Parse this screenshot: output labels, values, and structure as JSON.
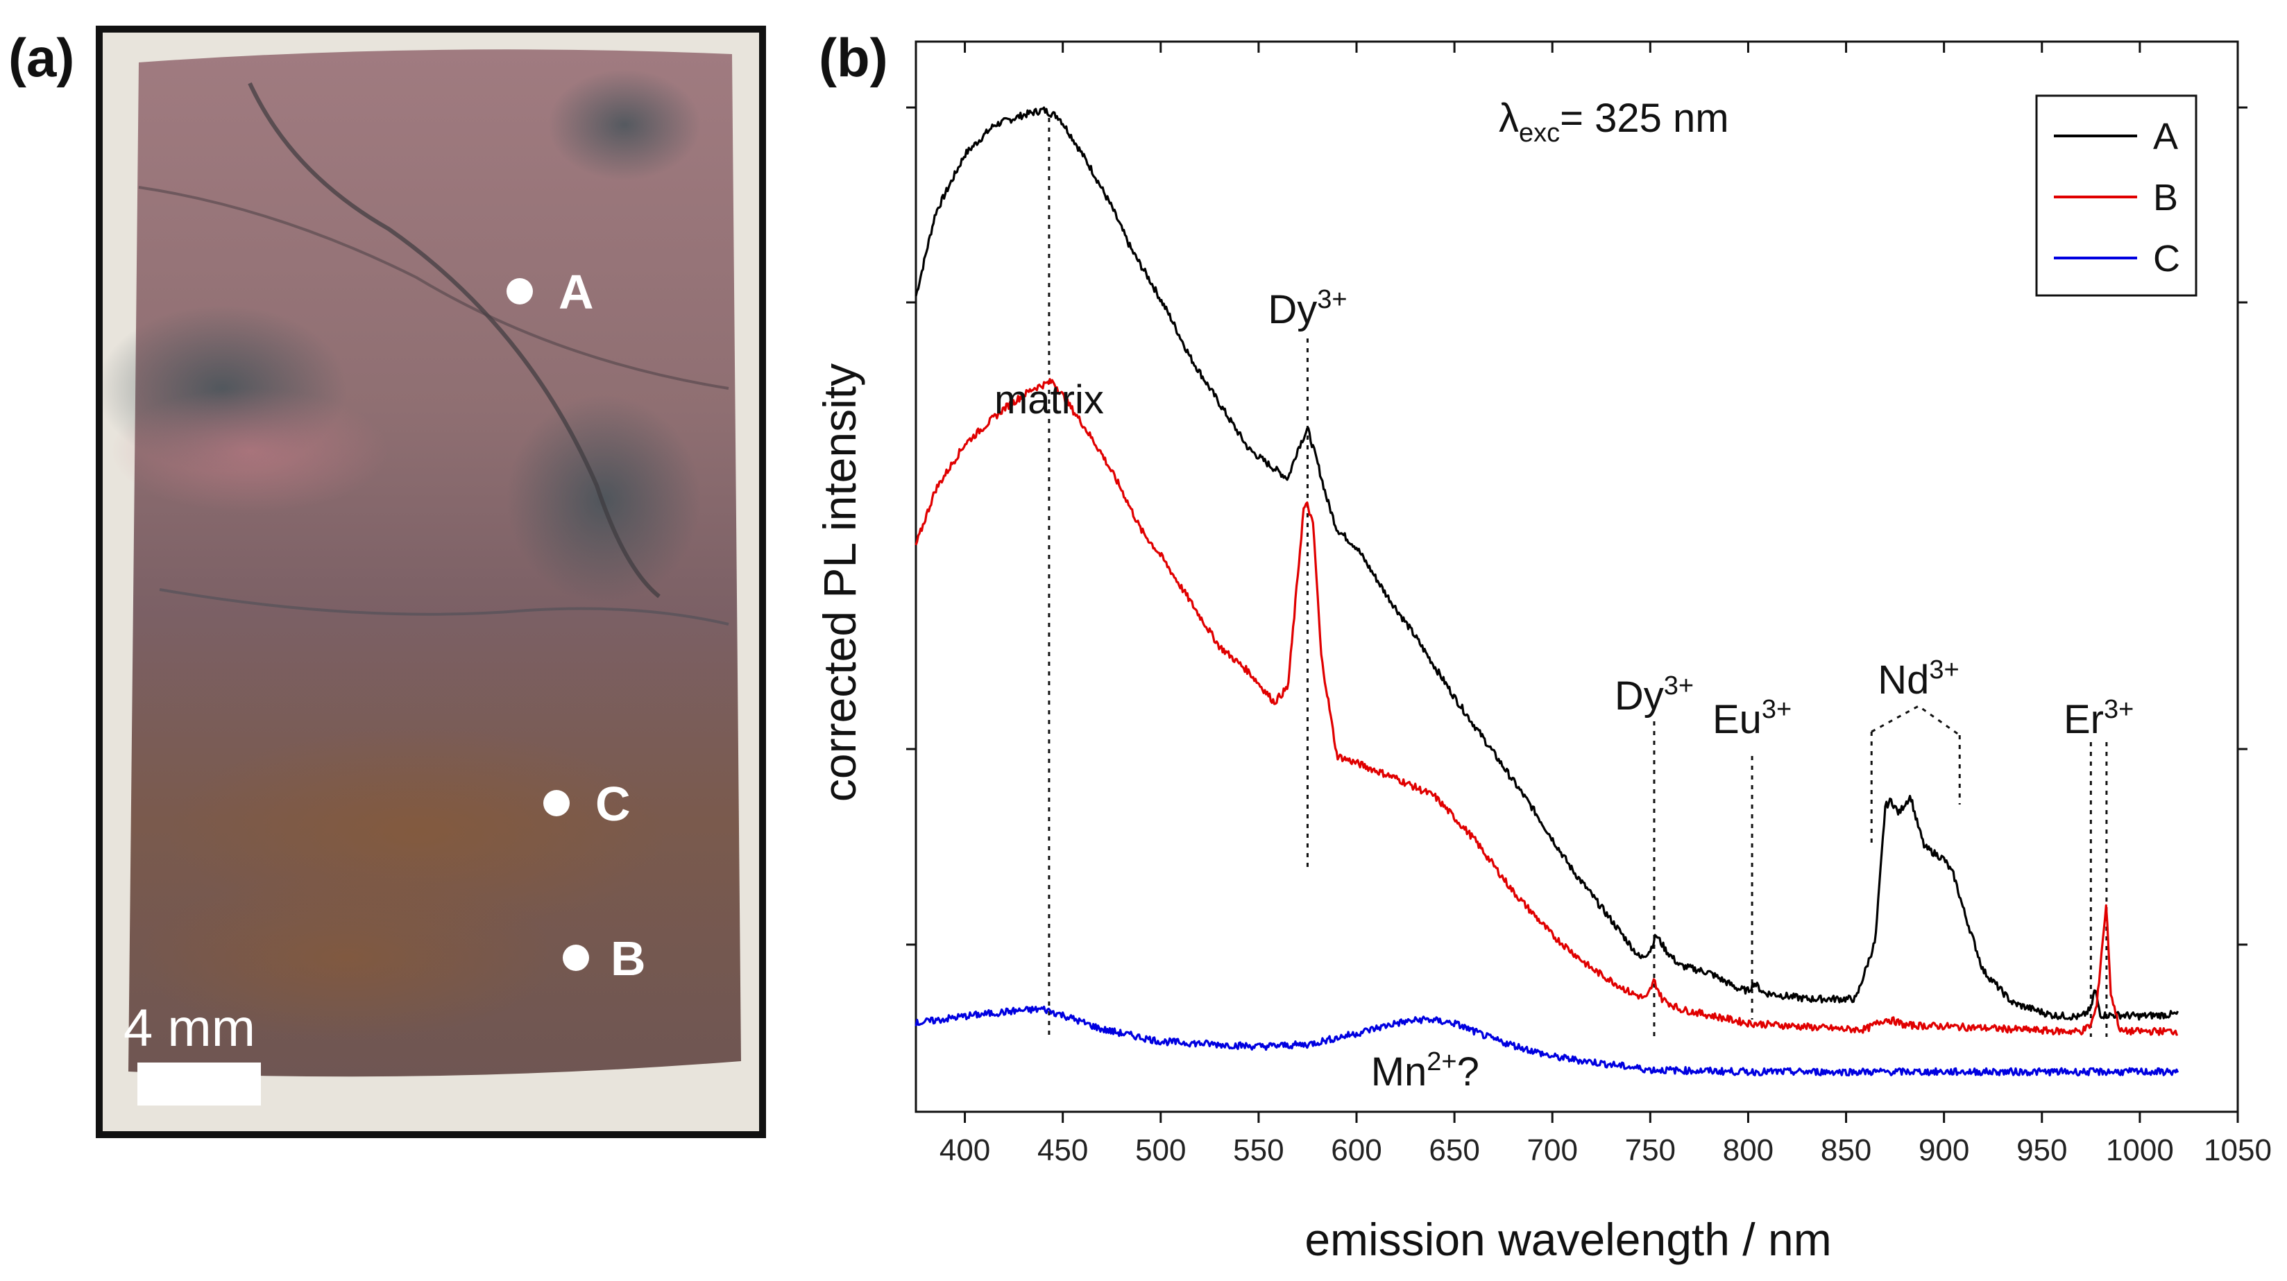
{
  "panel_a": {
    "label": "(a)",
    "points": [
      {
        "name": "A"
      },
      {
        "name": "C"
      },
      {
        "name": "B"
      }
    ],
    "scale_bar_label": "4 mm",
    "colors": {
      "frame": "#111111",
      "stone": "#7a5f63",
      "marker": "#ffffff"
    }
  },
  "panel_b": {
    "label": "(b)",
    "excitation": {
      "lambda": "λ",
      "subscript": "exc",
      "text": "= 325 nm"
    }
  },
  "chart_data": {
    "type": "line",
    "title": "",
    "xlabel": "emission wavelength / nm",
    "ylabel": "corrected PL intensity",
    "xlim": [
      375,
      1050
    ],
    "ylim": [
      0,
      1
    ],
    "xticks": [
      400,
      450,
      500,
      550,
      600,
      650,
      700,
      750,
      800,
      850,
      900,
      950,
      1000,
      1050
    ],
    "grid": false,
    "legend_position": "top-right",
    "series": [
      {
        "name": "A",
        "color": "#000000",
        "x": [
          375,
          385,
          400,
          415,
          430,
          440,
          448,
          455,
          465,
          475,
          485,
          495,
          505,
          515,
          530,
          545,
          555,
          565,
          570,
          575,
          580,
          585,
          590,
          600,
          615,
          630,
          650,
          670,
          690,
          710,
          730,
          745,
          750,
          753,
          758,
          765,
          780,
          795,
          800,
          803,
          808,
          830,
          855,
          865,
          870,
          873,
          877,
          880,
          883,
          886,
          890,
          895,
          900,
          905,
          910,
          920,
          935,
          955,
          970,
          975,
          977,
          980,
          990,
          1000,
          1020
        ],
        "y": [
          0.776,
          0.858,
          0.916,
          0.945,
          0.955,
          0.96,
          0.953,
          0.932,
          0.9,
          0.864,
          0.822,
          0.79,
          0.755,
          0.716,
          0.67,
          0.625,
          0.61,
          0.596,
          0.625,
          0.645,
          0.612,
          0.575,
          0.546,
          0.528,
          0.482,
          0.44,
          0.38,
          0.325,
          0.27,
          0.21,
          0.16,
          0.122,
          0.13,
          0.145,
          0.13,
          0.115,
          0.108,
          0.092,
          0.09,
          0.098,
          0.088,
          0.082,
          0.082,
          0.14,
          0.272,
          0.278,
          0.265,
          0.275,
          0.282,
          0.258,
          0.232,
          0.226,
          0.22,
          0.204,
          0.17,
          0.11,
          0.078,
          0.066,
          0.064,
          0.072,
          0.092,
          0.066,
          0.066,
          0.065,
          0.067
        ]
      },
      {
        "name": "B",
        "color": "#e00000",
        "x": [
          375,
          385,
          400,
          420,
          435,
          445,
          452,
          460,
          470,
          480,
          490,
          500,
          515,
          530,
          545,
          558,
          565,
          570,
          573,
          575,
          578,
          582,
          590,
          600,
          620,
          640,
          660,
          680,
          700,
          720,
          740,
          748,
          752,
          756,
          765,
          800,
          850,
          860,
          870,
          875,
          880,
          900,
          960,
          970,
          975,
          978,
          981,
          983,
          985,
          990,
          1000,
          1020
        ],
        "y": [
          0.53,
          0.585,
          0.63,
          0.665,
          0.685,
          0.692,
          0.672,
          0.65,
          0.62,
          0.585,
          0.545,
          0.52,
          0.475,
          0.43,
          0.405,
          0.375,
          0.39,
          0.5,
          0.566,
          0.57,
          0.548,
          0.42,
          0.322,
          0.315,
          0.3,
          0.282,
          0.24,
          0.188,
          0.145,
          0.112,
          0.088,
          0.082,
          0.1,
          0.082,
          0.072,
          0.058,
          0.052,
          0.052,
          0.062,
          0.06,
          0.056,
          0.055,
          0.05,
          0.05,
          0.056,
          0.075,
          0.14,
          0.176,
          0.09,
          0.05,
          0.05,
          0.05
        ]
      },
      {
        "name": "C",
        "color": "#0000e0",
        "x": [
          375,
          400,
          425,
          440,
          450,
          470,
          500,
          550,
          575,
          600,
          620,
          635,
          650,
          670,
          700,
          750,
          800,
          900,
          1000,
          1020
        ],
        "y": [
          0.058,
          0.065,
          0.07,
          0.072,
          0.066,
          0.052,
          0.04,
          0.035,
          0.037,
          0.048,
          0.058,
          0.062,
          0.058,
          0.042,
          0.025,
          0.012,
          0.01,
          0.01,
          0.01,
          0.01
        ]
      }
    ],
    "annotations": [
      {
        "base": "matrix",
        "sup": "",
        "after": "",
        "x": 443
      },
      {
        "base": "Dy",
        "sup": "3+",
        "after": "",
        "x": 575
      },
      {
        "base": "Dy",
        "sup": "3+",
        "after": "",
        "x": 752
      },
      {
        "base": "Eu",
        "sup": "3+",
        "after": "",
        "x": 802
      },
      {
        "base": "Nd",
        "sup": "3+",
        "after": "",
        "x": 887
      },
      {
        "base": "Er",
        "sup": "3+",
        "after": "",
        "x": 979
      },
      {
        "base": "Mn",
        "sup": "2+",
        "after": "?",
        "x": 635
      }
    ]
  }
}
